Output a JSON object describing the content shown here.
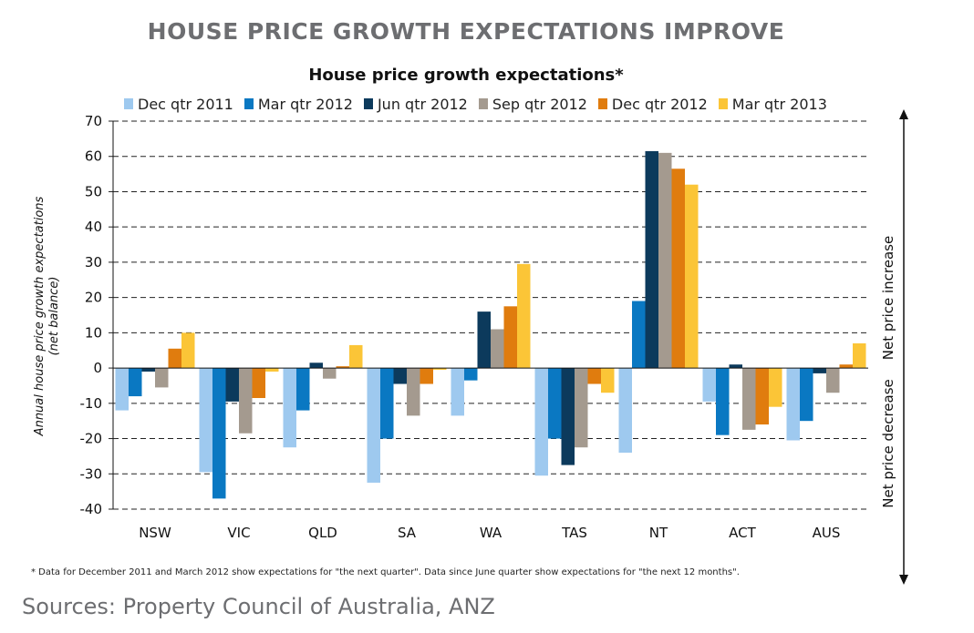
{
  "heading": "HOUSE PRICE GROWTH EXPECTATIONS IMPROVE",
  "footnote": "* Data for December 2011 and March 2012 show expectations for \"the next quarter\". Data since June quarter show expectations for \"the next 12 months\".",
  "source": "Sources: Property Council of Australia, ANZ",
  "side_labels": {
    "increase": "Net price increase",
    "decrease": "Net price decrease"
  },
  "chart_data": {
    "type": "bar",
    "title": "House price growth expectations*",
    "ylabel_line1": "Annual house price growth expectations",
    "ylabel_line2": "(net balance)",
    "ylim": [
      -40,
      70
    ],
    "yticks": [
      70,
      60,
      50,
      40,
      30,
      20,
      10,
      0,
      -10,
      -20,
      -30,
      -40
    ],
    "grid": "dashed-horizontal",
    "legend_placement": "top",
    "categories": [
      "NSW",
      "VIC",
      "QLD",
      "SA",
      "WA",
      "TAS",
      "NT",
      "ACT",
      "AUS"
    ],
    "series": [
      {
        "name": "Dec qtr 2011",
        "color": "#9ec9ef",
        "values": [
          -12,
          -29.5,
          -22.5,
          -32.5,
          -13.5,
          -30.5,
          -24,
          -9.5,
          -20.5
        ]
      },
      {
        "name": "Mar qtr 2012",
        "color": "#0a78c2",
        "values": [
          -8,
          -37,
          -12,
          -20,
          -3.5,
          -20,
          19,
          -19,
          -15
        ]
      },
      {
        "name": "Jun qtr 2012",
        "color": "#0c3a5c",
        "values": [
          -1,
          -9.5,
          1.5,
          -4.5,
          16,
          -27.5,
          61.5,
          1,
          -1.5
        ]
      },
      {
        "name": "Sep qtr 2012",
        "color": "#a49a8f",
        "values": [
          -5.5,
          -18.5,
          -3,
          -13.5,
          11,
          -22.5,
          61,
          -17.5,
          -7
        ]
      },
      {
        "name": "Dec qtr 2012",
        "color": "#e07c0e",
        "values": [
          5.5,
          -8.5,
          0.5,
          -4.5,
          17.5,
          -4.5,
          56.5,
          -16,
          1
        ]
      },
      {
        "name": "Mar qtr 2013",
        "color": "#fbc537",
        "values": [
          10,
          -1,
          6.5,
          -0.5,
          29.5,
          -7,
          52,
          -11,
          7
        ]
      }
    ]
  }
}
